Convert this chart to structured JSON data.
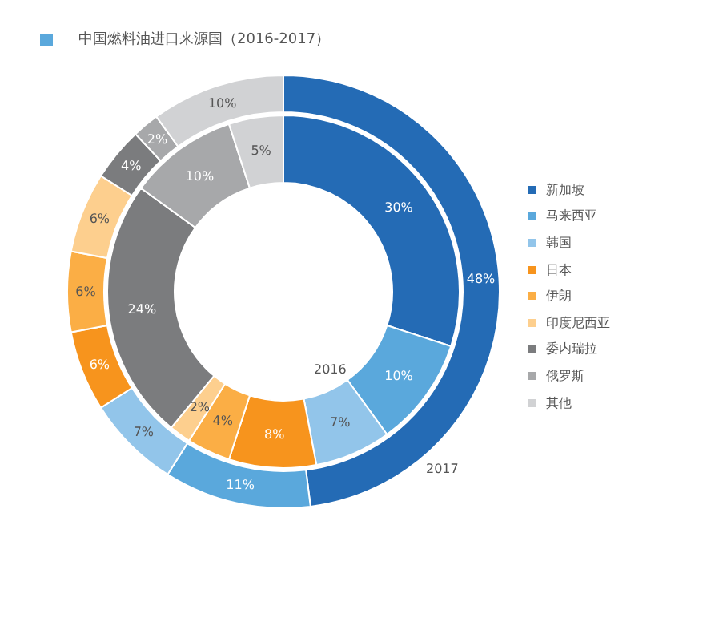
{
  "chart_data": {
    "type": "donut",
    "title": "中国燃料油进口来源国（2016-2017）",
    "categories": [
      "新加坡",
      "马来西亚",
      "韩国",
      "日本",
      "伊朗",
      "印度尼西亚",
      "委内瑞拉",
      "俄罗斯",
      "其他"
    ],
    "colors": [
      "#246bb5",
      "#5aa8dc",
      "#92c5ea",
      "#f7941d",
      "#fbae45",
      "#fdcf8e",
      "#7b7c7e",
      "#a7a8aa",
      "#d1d2d4"
    ],
    "series": [
      {
        "name": "2016",
        "values": [
          30,
          10,
          7,
          8,
          4,
          2,
          24,
          10,
          5
        ],
        "value_labels": [
          "30%",
          "10%",
          "7%",
          "8%",
          "4%",
          "2%",
          "24%",
          "10%",
          "5%"
        ]
      },
      {
        "name": "2017",
        "values": [
          48,
          11,
          7,
          6,
          6,
          6,
          4,
          2,
          10
        ],
        "value_labels": [
          "48%",
          "11%",
          "7%",
          "6%",
          "6%",
          "6%",
          "4%",
          "2%",
          "10%"
        ]
      }
    ],
    "legend": "right"
  }
}
